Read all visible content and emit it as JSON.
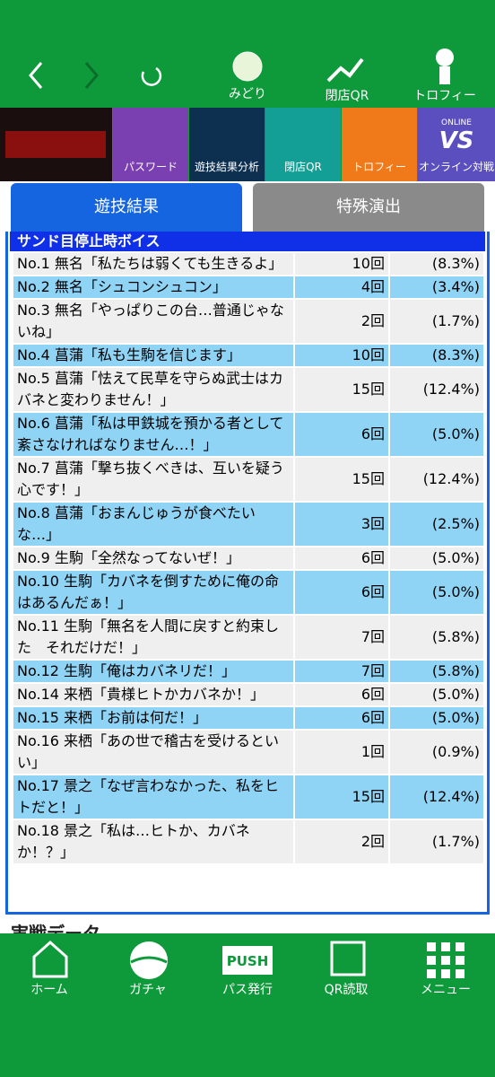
{
  "nav": {
    "links": [
      "みどり",
      "閉店QR",
      "トロフィー"
    ]
  },
  "banner": {
    "tiles": [
      "パスワード",
      "遊技結果分析",
      "閉店QR",
      "トロフィー",
      "オンライン対戦"
    ],
    "vs_icon": {
      "top": "ONLINE",
      "main": "VS"
    }
  },
  "tabs": [
    "遊技結果",
    "特殊演出"
  ],
  "section": {
    "title": "サンド目停止時ボイス",
    "rows": [
      [
        "No.1 無名「私たちは弱くても生きるよ」",
        "10回",
        "(8.3%)"
      ],
      [
        "No.2 無名「シュコンシュコン」",
        "4回",
        "(3.4%)"
      ],
      [
        "No.3 無名「やっぱりこの台…普通じゃないね」",
        "2回",
        "(1.7%)"
      ],
      [
        "No.4 菖蒲「私も生駒を信じます」",
        "10回",
        "(8.3%)"
      ],
      [
        "No.5 菖蒲「怯えて民草を守らぬ武士はカバネと変わりません！」",
        "15回",
        "(12.4%)"
      ],
      [
        "No.6 菖蒲「私は甲鉄城を預かる者として紊さなければなりません…！」",
        "6回",
        "(5.0%)"
      ],
      [
        "No.7 菖蒲「撃ち抜くべきは、互いを疑う心です！」",
        "15回",
        "(12.4%)"
      ],
      [
        "No.8 菖蒲「おまんじゅうが食べたいな…」",
        "3回",
        "(2.5%)"
      ],
      [
        "No.9 生駒「全然なってないぜ！」",
        "6回",
        "(5.0%)"
      ],
      [
        "No.10 生駒「カバネを倒すために俺の命はあるんだぁ！」",
        "6回",
        "(5.0%)"
      ],
      [
        "No.11 生駒「無名を人間に戻すと約束した　それだけだ！」",
        "7回",
        "(5.8%)"
      ],
      [
        "No.12 生駒「俺はカバネリだ！」",
        "7回",
        "(5.8%)"
      ],
      [
        "No.14 来栖「貴様ヒトかカバネか！」",
        "6回",
        "(5.0%)"
      ],
      [
        "No.15 来栖「お前は何だ！」",
        "6回",
        "(5.0%)"
      ],
      [
        "No.16 来栖「あの世で稽古を受けるといい」",
        "1回",
        "(0.9%)"
      ],
      [
        "No.17 景之「なぜ言わなかった、私をヒトだと！」",
        "15回",
        "(12.4%)"
      ],
      [
        "No.18 景之「私は…ヒトか、カバネか！？」",
        "2回",
        "(1.7%)"
      ]
    ]
  },
  "next_section": "実戦データ",
  "footer": {
    "items": [
      "ホーム",
      "ガチャ",
      "パス発行",
      "QR読取",
      "メニュー"
    ],
    "push_icon": "PUSH"
  }
}
